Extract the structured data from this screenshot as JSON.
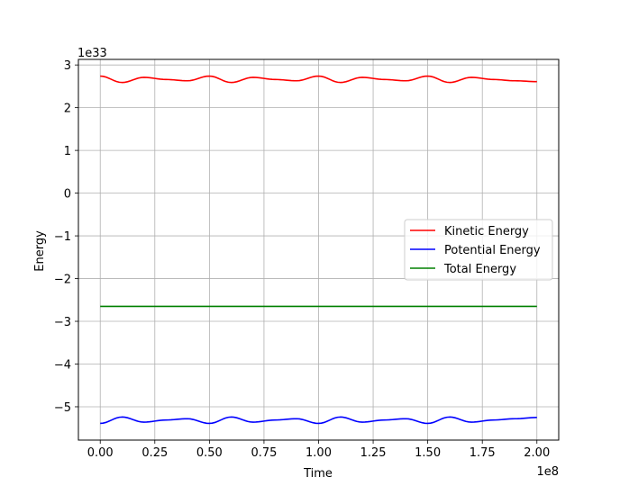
{
  "chart_data": {
    "type": "line",
    "title": "",
    "xlabel": "Time",
    "ylabel": "Energy",
    "x_offset_label": "1e8",
    "y_offset_label": "1e33",
    "xlim": [
      -0.1,
      2.1
    ],
    "ylim": [
      -5.78,
      3.13
    ],
    "x_ticks": [
      0.0,
      0.25,
      0.5,
      0.75,
      1.0,
      1.25,
      1.5,
      1.75,
      2.0
    ],
    "x_tick_labels": [
      "0.00",
      "0.25",
      "0.50",
      "0.75",
      "1.00",
      "1.25",
      "1.50",
      "1.75",
      "2.00"
    ],
    "y_ticks": [
      3,
      2,
      1,
      0,
      -1,
      -2,
      -3,
      -4,
      -5
    ],
    "y_tick_labels": [
      "3",
      "2",
      "1",
      "0",
      "−1",
      "−2",
      "−3",
      "−4",
      "−5"
    ],
    "grid": true,
    "legend_position": "center-right",
    "series": [
      {
        "name": "Kinetic Energy",
        "color": "#ff0000",
        "x": [
          0.0,
          0.1,
          0.2,
          0.3,
          0.4,
          0.5,
          0.6,
          0.7,
          0.8,
          0.9,
          1.0,
          1.1,
          1.2,
          1.3,
          1.4,
          1.5,
          1.6,
          1.7,
          1.8,
          1.9,
          2.0
        ],
        "y": [
          2.74,
          2.59,
          2.71,
          2.66,
          2.63,
          2.74,
          2.59,
          2.71,
          2.66,
          2.63,
          2.74,
          2.59,
          2.71,
          2.66,
          2.63,
          2.74,
          2.59,
          2.71,
          2.66,
          2.63,
          2.61
        ]
      },
      {
        "name": "Potential Energy",
        "color": "#0000ff",
        "x": [
          0.0,
          0.1,
          0.2,
          0.3,
          0.4,
          0.5,
          0.6,
          0.7,
          0.8,
          0.9,
          1.0,
          1.1,
          1.2,
          1.3,
          1.4,
          1.5,
          1.6,
          1.7,
          1.8,
          1.9,
          2.0
        ],
        "y": [
          -5.39,
          -5.24,
          -5.36,
          -5.31,
          -5.28,
          -5.39,
          -5.24,
          -5.36,
          -5.31,
          -5.28,
          -5.39,
          -5.24,
          -5.36,
          -5.31,
          -5.28,
          -5.39,
          -5.24,
          -5.36,
          -5.31,
          -5.28,
          -5.25
        ]
      },
      {
        "name": "Total Energy",
        "color": "#008000",
        "x": [
          0.0,
          2.0
        ],
        "y": [
          -2.65,
          -2.65
        ]
      }
    ]
  }
}
